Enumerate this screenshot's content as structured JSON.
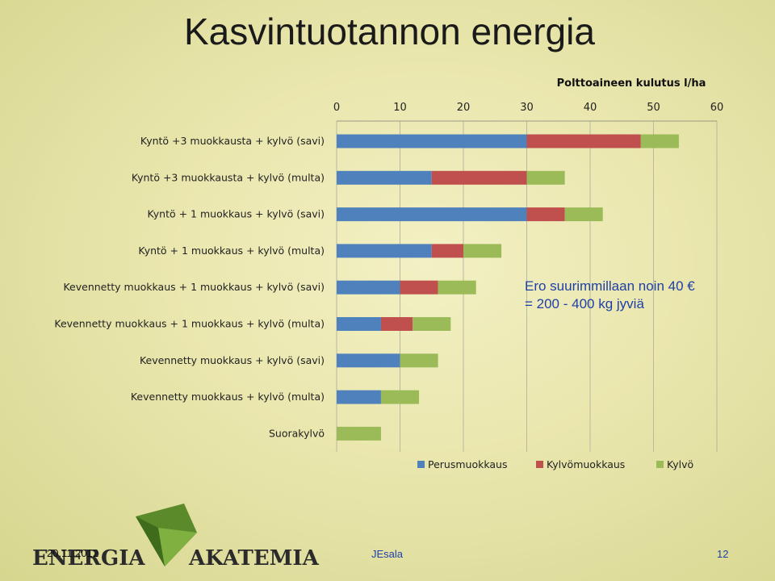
{
  "slide": {
    "title": "Kasvintuotannon energia",
    "annotation_line1": "Ero suurimmillaan noin 40 €",
    "annotation_line2": "= 200 - 400 kg jyviä",
    "footer_date": "20.11.2012",
    "footer_author": "JEsala",
    "page_number": "12",
    "logo_text_left": "ENERGIA",
    "logo_text_right": "AKATEMIA"
  },
  "colors": {
    "perus": "#4f81bd",
    "kylvomuokkaus": "#c0504d",
    "kylvo": "#9bbb59",
    "logo_green": "#5b8a2a",
    "logo_dark": "#2b2b2b"
  },
  "chart_data": {
    "type": "bar",
    "orientation": "horizontal",
    "stacked": true,
    "title": "Polttoaineen kulutus l/ha",
    "x_axis_position": "top",
    "xlim": [
      0,
      60
    ],
    "x_ticks": [
      "0",
      "10",
      "20",
      "30",
      "40",
      "50",
      "60"
    ],
    "grid": true,
    "legend_position": "bottom",
    "categories": [
      "Kyntö +3 muokkausta + kylvö (savi)",
      "Kyntö +3 muokkausta + kylvö (multa)",
      "Kyntö + 1 muokkaus + kylvö (savi)",
      "Kyntö + 1 muokkaus + kylvö (multa)",
      "Kevennetty muokkaus + 1 muokkaus + kylvö (savi)",
      "Kevennetty muokkaus + 1 muokkaus + kylvö (multa)",
      "Kevennetty muokkaus + kylvö (savi)",
      "Kevennetty muokkaus + kylvö (multa)",
      "Suorakylvö"
    ],
    "series": [
      {
        "name": "Perusmuokkaus",
        "values": [
          30,
          15,
          30,
          15,
          10,
          7,
          10,
          7,
          0
        ]
      },
      {
        "name": "Kylvömuokkaus",
        "values": [
          18,
          15,
          6,
          5,
          6,
          5,
          0,
          0,
          0
        ]
      },
      {
        "name": "Kylvö",
        "values": [
          6,
          6,
          6,
          6,
          6,
          6,
          6,
          6,
          7
        ]
      }
    ]
  }
}
